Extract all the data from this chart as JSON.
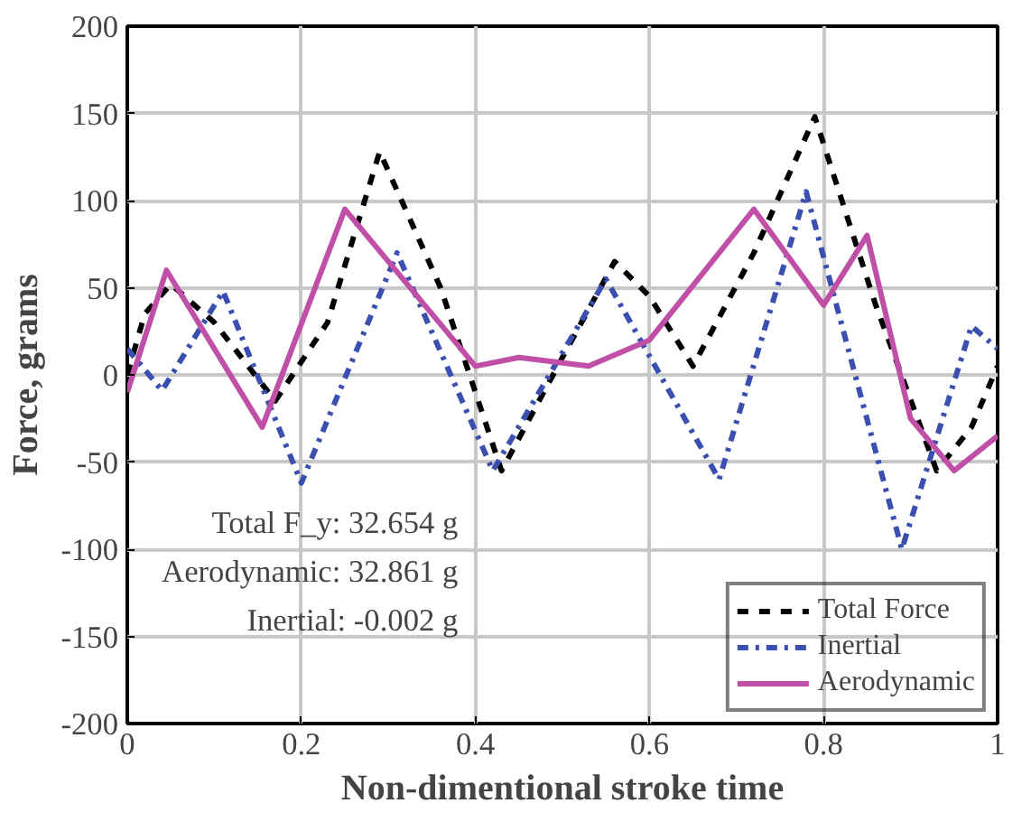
{
  "chart_data": {
    "type": "line",
    "xlabel": "Non-dimentional stroke time",
    "ylabel": "Force, grams",
    "xlim": [
      0,
      1
    ],
    "ylim": [
      -200,
      200
    ],
    "xticks": [
      0,
      0.2,
      0.4,
      0.6,
      0.8,
      1
    ],
    "yticks": [
      -200,
      -150,
      -100,
      -50,
      0,
      50,
      100,
      150,
      200
    ],
    "grid": true,
    "legend": "bottom right",
    "annotations": [
      "Total F_y: 32.654 g",
      "Aerodynamic: 32.861 g",
      "Inertial: -0.002 g"
    ],
    "series": [
      {
        "name": "Total Force",
        "color": "#000000",
        "line_style": "dashed",
        "x": [
          0,
          0.02,
          0.05,
          0.1,
          0.17,
          0.23,
          0.29,
          0.36,
          0.43,
          0.5,
          0.56,
          0.6,
          0.65,
          0.72,
          0.79,
          0.86,
          0.93,
          0.97,
          1
        ],
        "values": [
          0,
          35,
          52,
          30,
          -15,
          30,
          128,
          50,
          -55,
          10,
          65,
          45,
          5,
          70,
          148,
          40,
          -55,
          -30,
          5
        ]
      },
      {
        "name": "Inertial",
        "color": "#3b4fb0",
        "line_style": "dashdot",
        "x": [
          0,
          0.04,
          0.11,
          0.2,
          0.31,
          0.42,
          0.55,
          0.68,
          0.78,
          0.89,
          0.97,
          1
        ],
        "values": [
          15,
          -9,
          48,
          -62,
          70,
          -55,
          55,
          -60,
          105,
          -100,
          28,
          15
        ]
      },
      {
        "name": "Aerodynamic",
        "color": "#c04fa8",
        "line_style": "solid",
        "x": [
          0,
          0.045,
          0.155,
          0.25,
          0.4,
          0.45,
          0.53,
          0.6,
          0.72,
          0.8,
          0.85,
          0.9,
          0.95,
          1
        ],
        "values": [
          -10,
          60,
          -30,
          95,
          5,
          10,
          5,
          20,
          95,
          40,
          80,
          -25,
          -55,
          -35
        ]
      }
    ]
  }
}
